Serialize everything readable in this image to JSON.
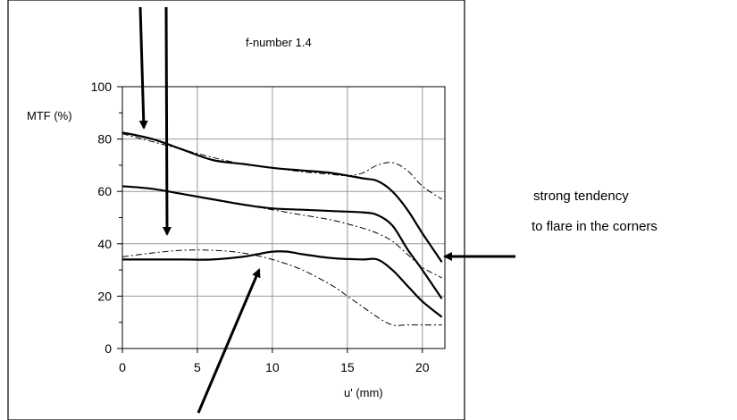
{
  "chart_data": {
    "type": "line",
    "title": "f-number 1.4",
    "xlabel": "u' (mm)",
    "ylabel": "MTF (%)",
    "xlim": [
      0,
      21.5
    ],
    "ylim": [
      0,
      100
    ],
    "x_ticks": [
      "0",
      "5",
      "10",
      "15",
      "20"
    ],
    "y_ticks": [
      "0",
      "20",
      "40",
      "60",
      "80",
      "100"
    ],
    "grid": true,
    "legend": "none",
    "series": [
      {
        "style": "solid",
        "x": [
          0,
          2,
          4,
          6,
          8,
          10,
          12,
          14,
          16,
          17,
          18,
          19,
          20,
          21.3
        ],
        "y": [
          82.5,
          80,
          76,
          72,
          70.5,
          69,
          68,
          67,
          65,
          64,
          60,
          53,
          44,
          33
        ]
      },
      {
        "style": "solid",
        "x": [
          0,
          2,
          4,
          6,
          8,
          10,
          12,
          14,
          16,
          17,
          18,
          19,
          20,
          21.3
        ],
        "y": [
          62,
          61,
          59,
          57,
          55,
          53.5,
          53,
          52.5,
          52,
          51,
          47,
          38,
          30,
          19
        ]
      },
      {
        "style": "solid",
        "x": [
          0,
          2,
          4,
          6,
          8,
          9,
          10,
          11,
          12,
          14,
          16,
          17,
          18,
          19,
          20,
          21.3
        ],
        "y": [
          34,
          34,
          34,
          34,
          35,
          36,
          37,
          37,
          36,
          34.5,
          34,
          34,
          30,
          24,
          18,
          12
        ]
      },
      {
        "style": "dashed",
        "x": [
          0,
          2,
          4,
          6,
          8,
          10,
          12,
          14,
          15,
          16,
          17,
          18,
          19,
          20,
          21.3
        ],
        "y": [
          82,
          79,
          76,
          73,
          70.5,
          69,
          67.5,
          66.5,
          66,
          67,
          70,
          71,
          68,
          62,
          57
        ]
      },
      {
        "style": "dashed",
        "x": [
          0,
          2,
          4,
          6,
          8,
          10,
          12,
          14,
          16,
          17,
          18,
          19,
          20,
          21.3
        ],
        "y": [
          62,
          61,
          59,
          57,
          55,
          53,
          51,
          49,
          46,
          44,
          41,
          36,
          31,
          27
        ]
      },
      {
        "style": "dashed",
        "x": [
          0,
          2,
          4,
          6,
          8,
          10,
          12,
          14,
          15,
          16,
          17,
          18,
          19,
          20,
          21.3
        ],
        "y": [
          35,
          36.5,
          37.5,
          37.5,
          36.5,
          34,
          30,
          24,
          20,
          16,
          12,
          9,
          9,
          9,
          9
        ]
      }
    ],
    "annotations": [
      {
        "text_lines": [
          "strong tendency",
          "to flare in the corners"
        ]
      }
    ],
    "colors": {
      "line": "#000000",
      "grid": "#999999",
      "frame": "#000000"
    }
  }
}
